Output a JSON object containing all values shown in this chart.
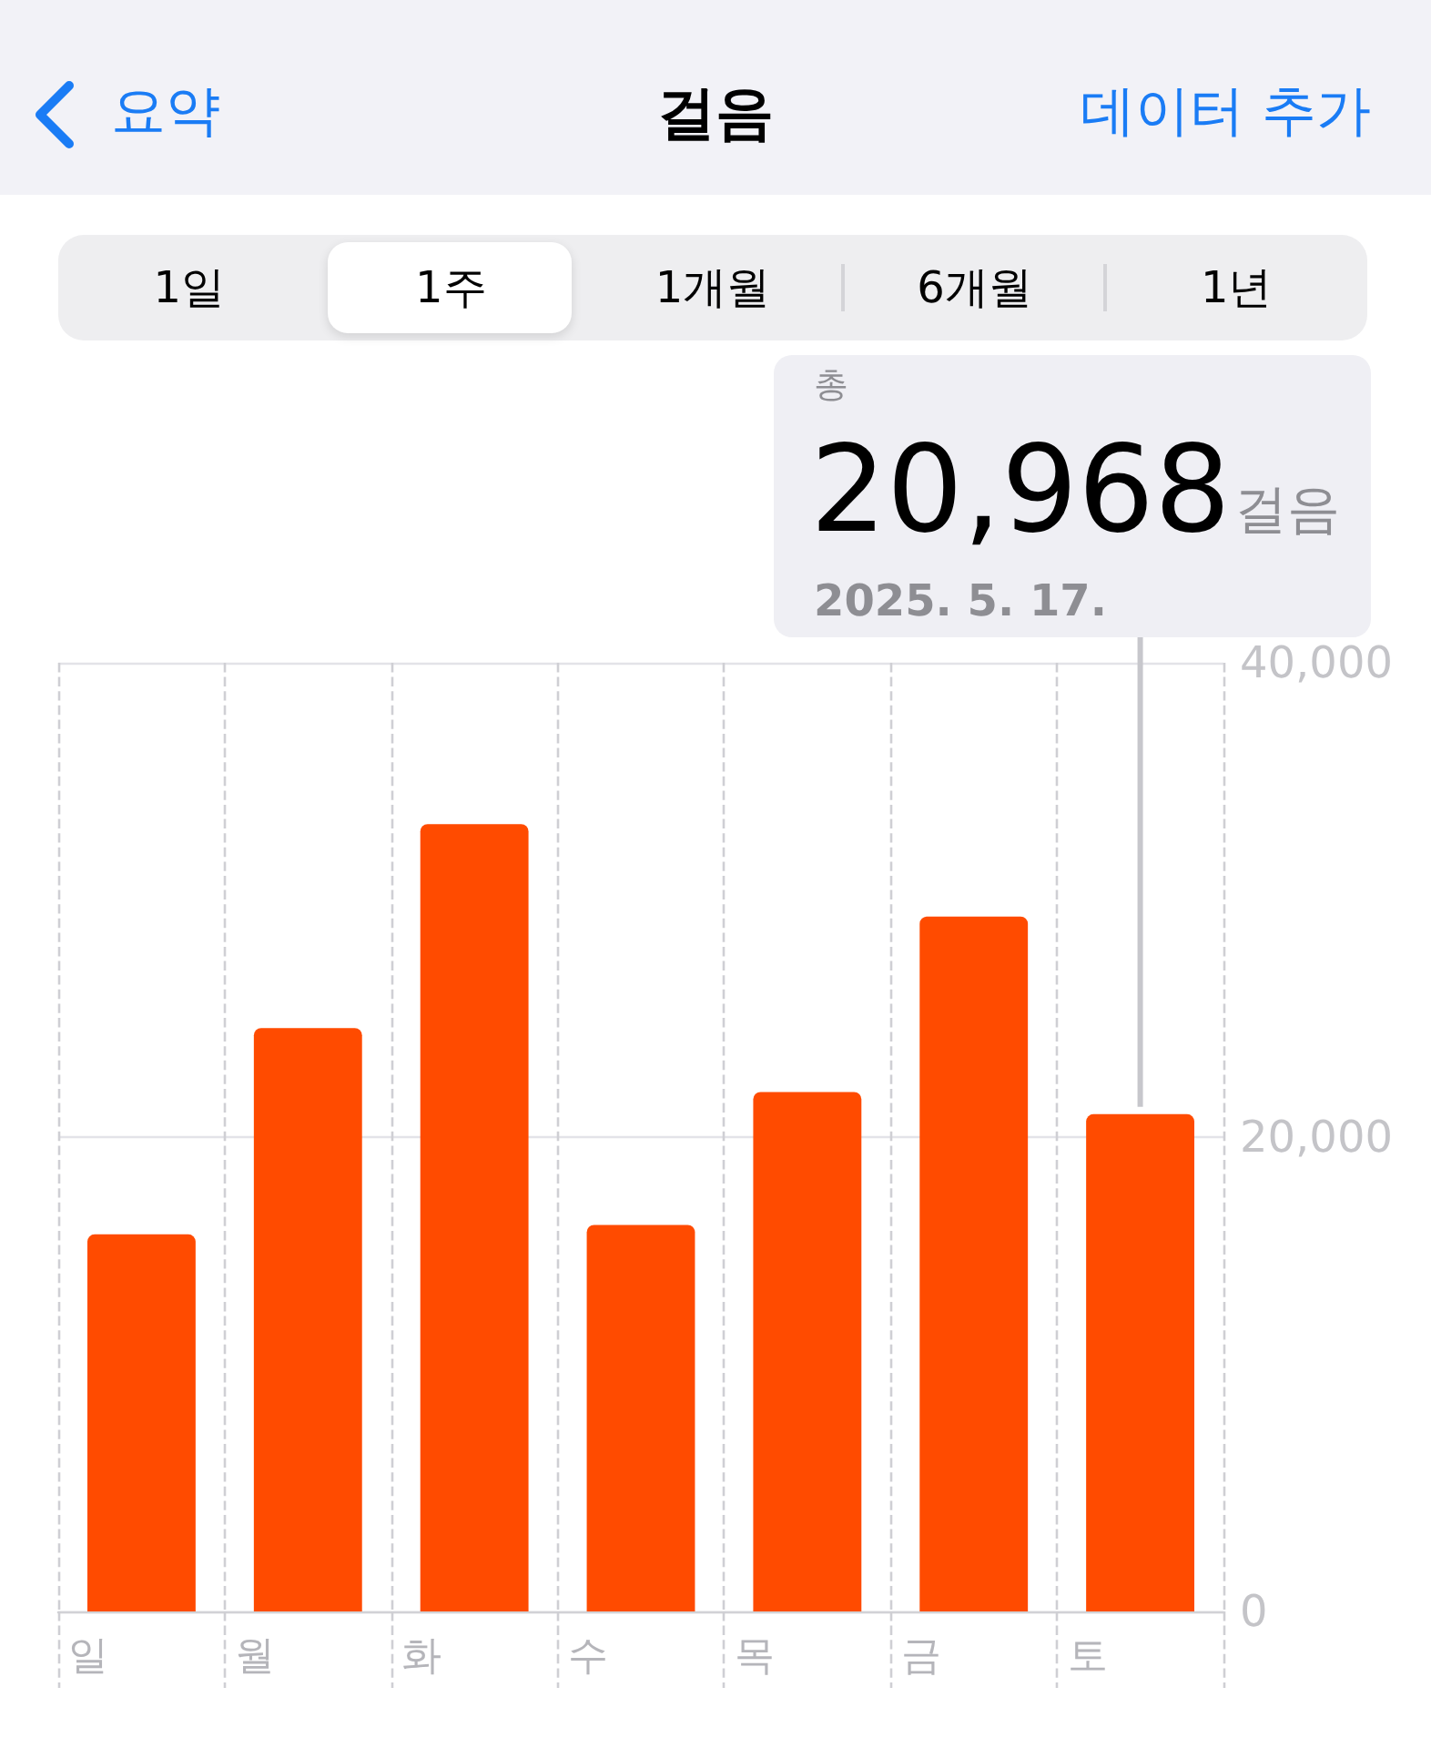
{
  "chart_data": {
    "type": "bar",
    "title": "걸음",
    "categories": [
      "일",
      "월",
      "화",
      "수",
      "목",
      "금",
      "토"
    ],
    "values": [
      15900,
      24600,
      33200,
      16300,
      21900,
      29300,
      20968
    ],
    "color": "#ff4b00",
    "ylim": [
      0,
      40000
    ],
    "yticks": [
      0,
      {
        "value": 20000,
        "label": "20,000"
      },
      {
        "value": 40000,
        "label": "40,000"
      }
    ],
    "grid": true,
    "annotations": [
      "요약",
      "데이터 추가",
      "1일",
      "1주",
      "1개월",
      "6개월",
      "1년",
      "총",
      "20,968",
      "걸음",
      "2025. 5. 17."
    ]
  }
}
